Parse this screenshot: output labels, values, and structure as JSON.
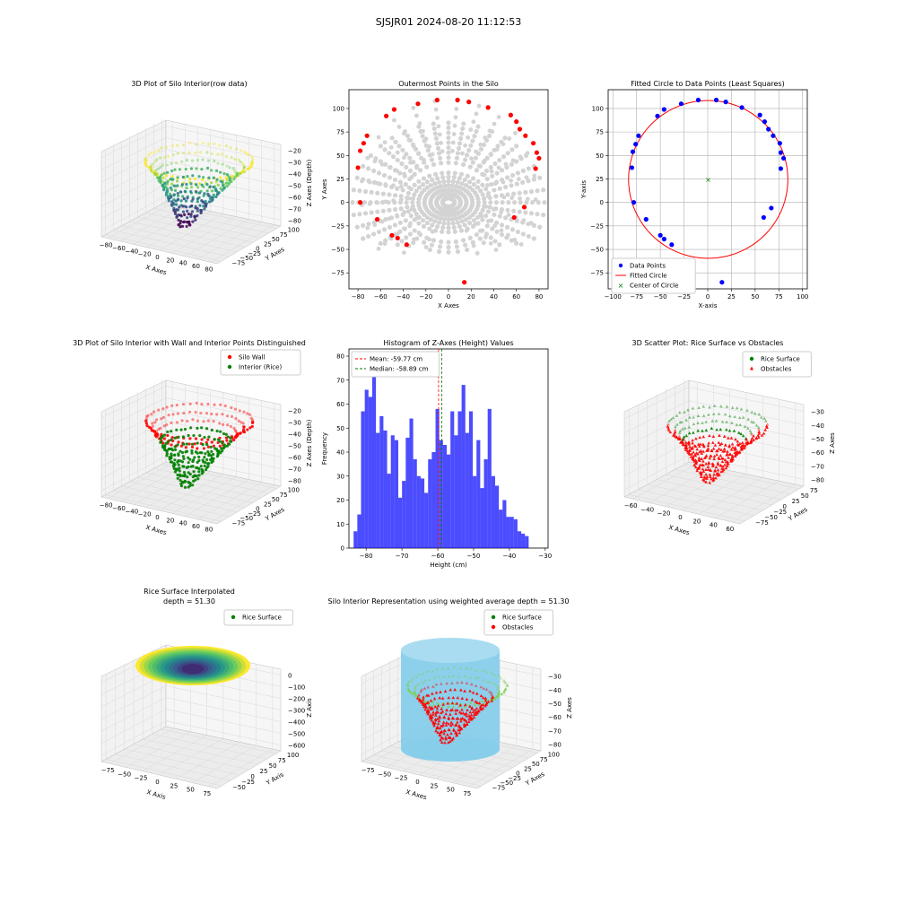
{
  "suptitle": "SJSJR01 2024-08-20 11:12:53",
  "colors": {
    "viridis": [
      "#440154",
      "#3b528b",
      "#21918c",
      "#5ec962",
      "#fde725"
    ],
    "gray": "#d3d3d3",
    "red": "#ff0000",
    "blue": "#0000ff",
    "green": "#008000",
    "hist": "#0000ff",
    "cyl": "#87ceeb"
  },
  "chart_data": [
    {
      "id": "p1",
      "type": "scatter3d",
      "title": "3D Plot of Silo Interior(row data)",
      "xlabel": "X Axes",
      "ylabel": "Y Axes",
      "zlabel": "Z Axes (Depth)",
      "xticks": [
        "−80",
        "−60",
        "−40",
        "−20",
        "0",
        "20",
        "40",
        "60",
        "80"
      ],
      "yticks": [
        "−75",
        "−50",
        "−25",
        "0",
        "25",
        "50",
        "75",
        "100"
      ],
      "zticks": [
        "−20",
        "−30",
        "−40",
        "−50",
        "−60",
        "−70",
        "−80"
      ],
      "colormap": "viridis"
    },
    {
      "id": "p2",
      "type": "scatter",
      "title": "Outermost Points in the Silo",
      "xlabel": "X Axes",
      "ylabel": "Y Axes",
      "xlim": [
        -88,
        88
      ],
      "ylim": [
        -92,
        120
      ],
      "xticks": [
        -80,
        -60,
        -40,
        -20,
        0,
        20,
        40,
        60,
        80
      ],
      "yticks": [
        -75,
        -50,
        -25,
        0,
        25,
        50,
        75,
        100
      ],
      "outermost_points": [
        [
          -80,
          37
        ],
        [
          -78,
          55
        ],
        [
          -75,
          63
        ],
        [
          -72,
          71
        ],
        [
          -78,
          0
        ],
        [
          -63,
          -18
        ],
        [
          -50,
          -35
        ],
        [
          -45,
          -38
        ],
        [
          -37,
          -45
        ],
        [
          -48,
          99
        ],
        [
          -55,
          92
        ],
        [
          -27,
          105
        ],
        [
          -10,
          109
        ],
        [
          8,
          109
        ],
        [
          18,
          107
        ],
        [
          35,
          101
        ],
        [
          55,
          93
        ],
        [
          60,
          86
        ],
        [
          63,
          78
        ],
        [
          68,
          71
        ],
        [
          75,
          63
        ],
        [
          78,
          53
        ],
        [
          80,
          47
        ],
        [
          77,
          36
        ],
        [
          67,
          -5
        ],
        [
          58,
          -16
        ],
        [
          14,
          -85
        ]
      ]
    },
    {
      "id": "p3",
      "type": "scatter",
      "title": "Fitted Circle to Data Points (Least Squares)",
      "xlabel": "X-axis",
      "ylabel": "Y-axis",
      "xlim": [
        -105,
        105
      ],
      "ylim": [
        -92,
        120
      ],
      "xticks": [
        -100,
        -75,
        -50,
        -25,
        0,
        25,
        50,
        75,
        100
      ],
      "yticks": [
        -75,
        -50,
        -25,
        0,
        25,
        50,
        75,
        100
      ],
      "grid": true,
      "data_points": [
        [
          -80,
          37
        ],
        [
          -79,
          54
        ],
        [
          -76,
          62
        ],
        [
          -73,
          71
        ],
        [
          -78,
          0
        ],
        [
          -65,
          -18
        ],
        [
          -50,
          -35
        ],
        [
          -46,
          -39
        ],
        [
          -38,
          -45
        ],
        [
          -46,
          99
        ],
        [
          -53,
          92
        ],
        [
          -28,
          105
        ],
        [
          -10,
          109
        ],
        [
          9,
          109
        ],
        [
          19,
          107
        ],
        [
          36,
          101
        ],
        [
          55,
          93
        ],
        [
          60,
          86
        ],
        [
          64,
          78
        ],
        [
          69,
          71
        ],
        [
          76,
          63
        ],
        [
          77,
          53
        ],
        [
          80,
          47
        ],
        [
          77,
          36
        ],
        [
          67,
          -6
        ],
        [
          59,
          -16
        ],
        [
          15,
          -85
        ]
      ],
      "circle": {
        "cx": 0.5,
        "cy": 24.5,
        "r": 84
      },
      "legend": [
        "Data Points",
        "Fitted Circle",
        "Center of Circle"
      ],
      "legend_loc": "lower left"
    },
    {
      "id": "p4",
      "type": "scatter3d",
      "title": "3D Plot of Silo Interior with Wall and Interior Points Distinguished",
      "xlabel": "X Axes",
      "ylabel": "Y Axes",
      "zlabel": "Z Axes (Depth)",
      "xticks": [
        "−80",
        "−60",
        "−40",
        "−20",
        "0",
        "20",
        "40",
        "60",
        "80"
      ],
      "yticks": [
        "−75",
        "−50",
        "−25",
        "0",
        "25",
        "50",
        "75",
        "100"
      ],
      "zticks": [
        "−20",
        "−30",
        "−40",
        "−50",
        "−60",
        "−70",
        "−80"
      ],
      "legend": [
        "Silo Wall",
        "Interior (Rice)"
      ],
      "legend_loc": "upper right"
    },
    {
      "id": "p5",
      "type": "bar",
      "title": "Histogram of Z-Axes (Height) Values",
      "xlabel": "Height (cm)",
      "ylabel": "Frequency",
      "xlim": [
        -84.8,
        -29.2
      ],
      "ylim": [
        0,
        83
      ],
      "xticks": [
        -80,
        -70,
        -60,
        -50,
        -40,
        -30
      ],
      "yticks": [
        0,
        10,
        20,
        30,
        40,
        50,
        60,
        70,
        80
      ],
      "bin_start": -83.5,
      "bin_width": 1.04,
      "values": [
        7,
        14,
        57,
        66,
        63,
        73,
        48,
        55,
        49,
        31,
        47,
        45,
        21,
        28,
        46,
        54,
        37,
        30,
        29,
        23,
        37,
        40,
        58,
        45,
        43,
        39,
        57,
        47,
        57,
        68,
        48,
        57,
        30,
        45,
        25,
        37,
        58,
        30,
        26,
        16,
        20,
        13,
        13,
        12,
        7,
        6,
        5
      ],
      "mean": -59.77,
      "median": -58.89,
      "legend": [
        "Mean: -59.77 cm",
        "Median: -58.89 cm"
      ],
      "legend_loc": "upper left"
    },
    {
      "id": "p6",
      "type": "scatter3d",
      "title": "3D Scatter Plot: Rice Surface vs Obstacles",
      "xlabel": "X Axes",
      "ylabel": "Y Axes",
      "zlabel": "Z Axes",
      "xticks": [
        "−60",
        "−40",
        "−20",
        "0",
        "20",
        "40",
        "60"
      ],
      "yticks": [
        "−75",
        "−50",
        "−25",
        "0",
        "25",
        "50",
        "75"
      ],
      "zticks": [
        "−30",
        "−40",
        "−50",
        "−60",
        "−70",
        "−80"
      ],
      "legend": [
        "Rice Surface",
        "Obstacles"
      ],
      "legend_loc": "upper right"
    },
    {
      "id": "p7",
      "type": "surface3d",
      "title": "Rice Surface Interpolated",
      "subtitle": "depth = 51.30",
      "xlabel": "X Axis",
      "ylabel": "Y Axis",
      "zlabel": "Z Axis",
      "xticks": [
        "−75",
        "−50",
        "−25",
        "0",
        "25",
        "50",
        "75"
      ],
      "yticks": [
        "−50",
        "−25",
        "0",
        "25",
        "50",
        "75",
        "100"
      ],
      "zticks": [
        "0",
        "−100",
        "−200",
        "−300",
        "−400",
        "−500",
        "−600"
      ],
      "legend": [
        "Rice Surface"
      ],
      "legend_loc": "upper right"
    },
    {
      "id": "p8",
      "type": "surface3d",
      "title": "Silo Interior Representation using weighted average depth = 51.30",
      "xlabel": "X Axes",
      "ylabel": "Y Axes",
      "zlabel": "Z Axes",
      "xticks": [
        "−75",
        "−50",
        "−25",
        "0",
        "25",
        "50",
        "75"
      ],
      "yticks": [
        "−75",
        "−50",
        "−25",
        "0",
        "25",
        "50",
        "75",
        "100"
      ],
      "zticks": [
        "−30",
        "−40",
        "−50",
        "−60",
        "−70",
        "−80"
      ],
      "legend": [
        "Rice Surface",
        "Obstacles"
      ],
      "legend_loc": "upper right"
    }
  ]
}
